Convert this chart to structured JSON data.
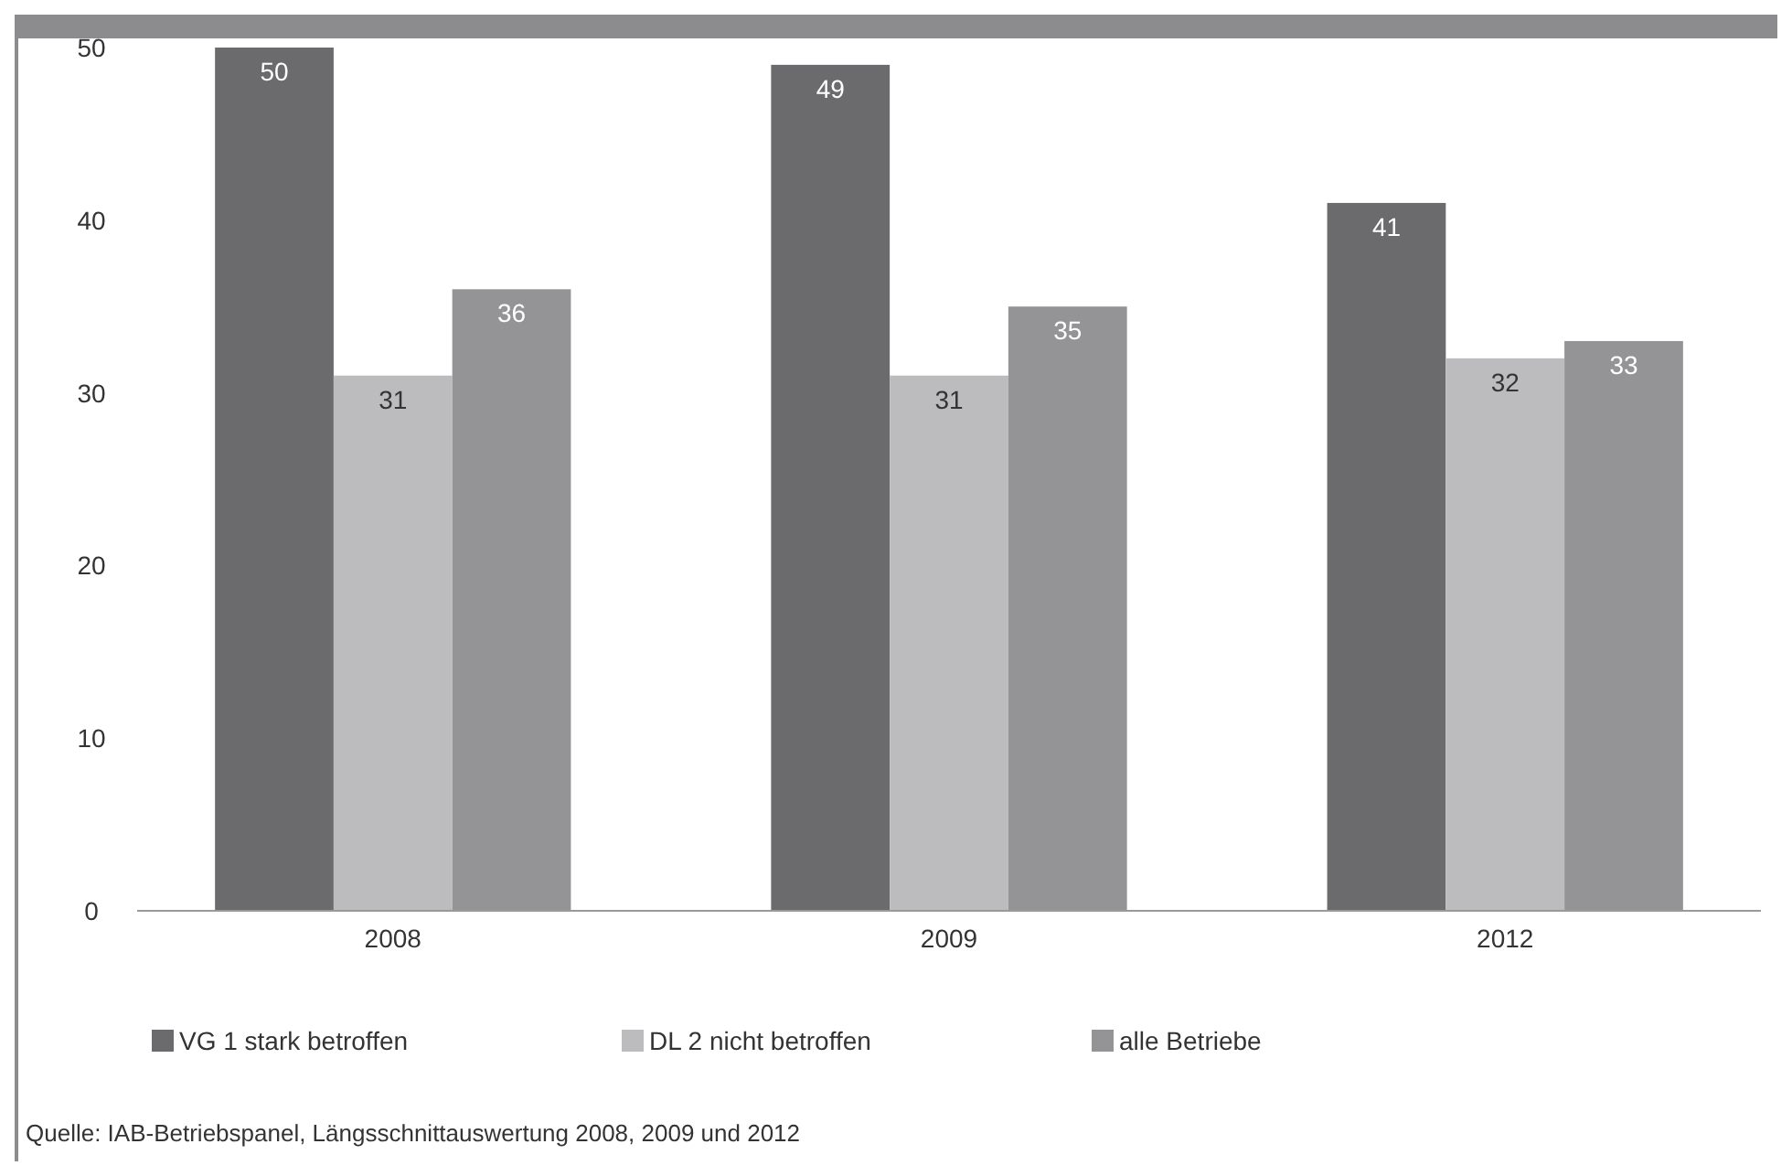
{
  "chart_data": {
    "type": "bar",
    "categories": [
      "2008",
      "2009",
      "2012"
    ],
    "series": [
      {
        "name": "VG 1 stark betroffen",
        "color": "#6b6b6e",
        "values": [
          50,
          49,
          41
        ]
      },
      {
        "name": "DL 2 nicht betroffen",
        "color": "#bcbcbf",
        "values": [
          31,
          31,
          32
        ]
      },
      {
        "name": "alle Betriebe",
        "color": "#949497",
        "values": [
          36,
          35,
          33
        ]
      }
    ],
    "ylim": [
      0,
      50
    ],
    "yticks": [
      0,
      10,
      20,
      30,
      40,
      50
    ],
    "grid": false,
    "legend": "bottom",
    "data_labels": true,
    "annotations": [
      "Quelle: IAB-Betriebspanel, Längsschnittauswertung 2008, 2009 und 2012"
    ]
  }
}
